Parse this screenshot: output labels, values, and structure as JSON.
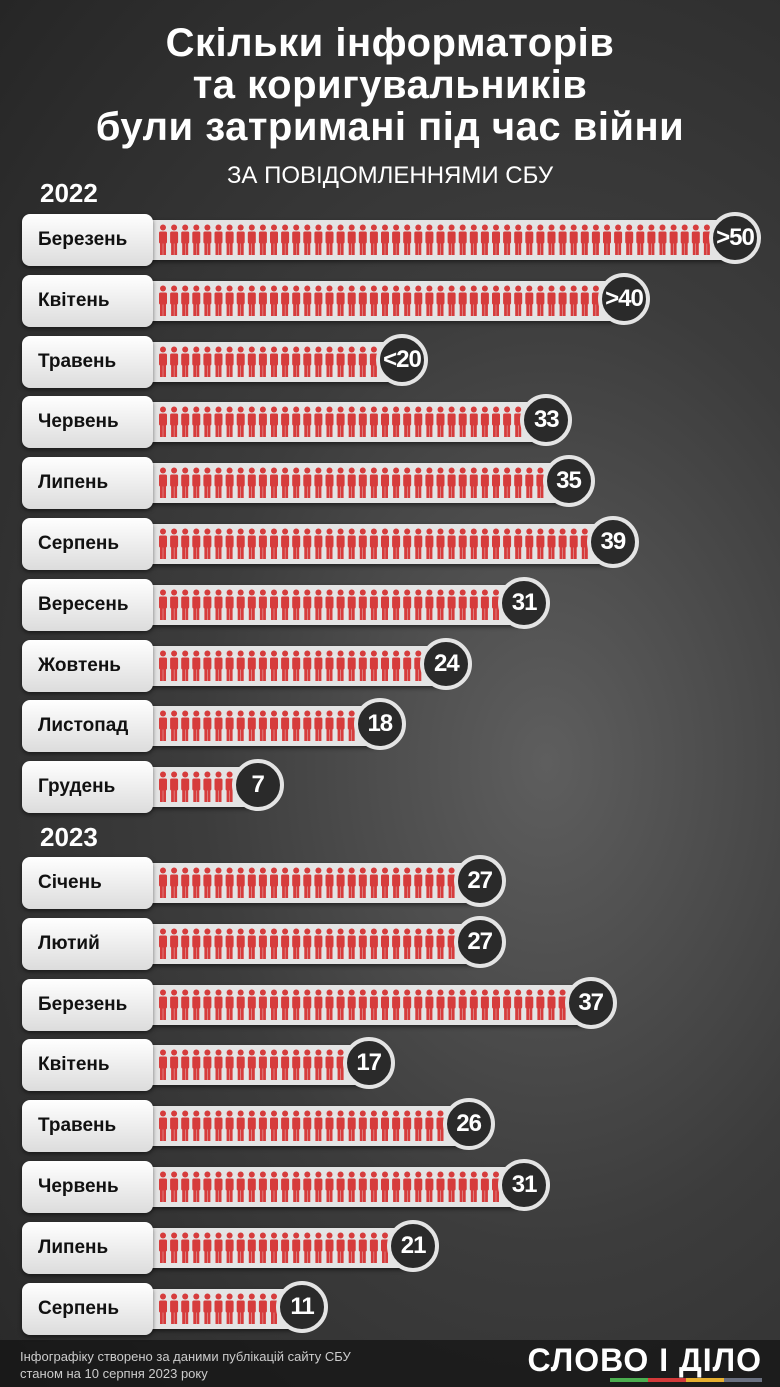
{
  "title": [
    "Скільки інформаторів",
    "та коригувальників",
    "були затримані під час війни"
  ],
  "subtitle": "За повідомленнями СБУ",
  "chart_data": {
    "type": "bar",
    "title": "Скільки інформаторів та коригувальників були затримані під час війни",
    "subtitle": "За повідомленнями СБУ",
    "groups": [
      {
        "year": "2022",
        "categories": [
          "Березень",
          "Квітень",
          "Травень",
          "Червень",
          "Липень",
          "Серпень",
          "Вересень",
          "Жовтень",
          "Листопад",
          "Грудень"
        ],
        "values": [
          50,
          40,
          20,
          33,
          35,
          39,
          31,
          24,
          18,
          7
        ],
        "labels": [
          ">50",
          ">40",
          "<20",
          "33",
          "35",
          "39",
          "31",
          "24",
          "18",
          "7"
        ]
      },
      {
        "year": "2023",
        "categories": [
          "Січень",
          "Лютий",
          "Березень",
          "Квітень",
          "Травень",
          "Червень",
          "Липень",
          "Серпень"
        ],
        "values": [
          27,
          27,
          37,
          17,
          26,
          31,
          21,
          11
        ],
        "labels": [
          "27",
          "27",
          "37",
          "17",
          "26",
          "31",
          "21",
          "11"
        ]
      }
    ],
    "colors": {
      "figure": "#d63c3c",
      "circle": "#2a2a2a",
      "track": "#e4e4e4"
    }
  },
  "footer": {
    "note_line1": "Інфографіку створено за даними публікацій сайту СБУ",
    "note_line2": "станом на 10 серпня 2023 року",
    "logo": "СЛОВО і ДІЛО"
  }
}
